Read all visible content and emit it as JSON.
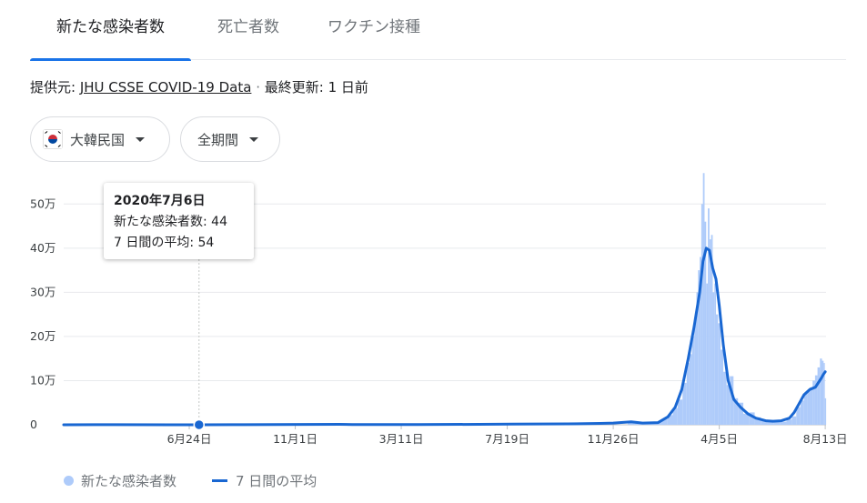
{
  "tabs": [
    {
      "label": "新たな感染者数",
      "active": true
    },
    {
      "label": "死亡者数",
      "active": false
    },
    {
      "label": "ワクチン接種",
      "active": false
    }
  ],
  "source": {
    "prefix": "提供元:",
    "link": "JHU CSSE COVID-19 Data",
    "separator": "·",
    "updated": "最終更新: 1 日前"
  },
  "filters": {
    "country": "大韓民国",
    "period": "全期間",
    "country_flag_icon": "korea-flag-icon"
  },
  "tooltip": {
    "date": "2020年7月6日",
    "new_cases": "新たな感染者数: 44",
    "average": "7 日間の平均: 54"
  },
  "legend": {
    "daily": "新たな感染者数",
    "average": "7 日間の平均"
  },
  "colors": {
    "bars": "#aecbfa",
    "line": "#1967d2",
    "accent": "#1a73e8",
    "grid": "#e8eaed"
  },
  "chart_data": {
    "type": "bar",
    "y_unit": "万",
    "ylim": [
      0,
      550000
    ],
    "yticks": [
      0,
      100000,
      200000,
      300000,
      400000,
      500000
    ],
    "ytick_labels": [
      "0",
      "10万",
      "20万",
      "30万",
      "40万",
      "50万"
    ],
    "xlim": [
      "2020-01-22",
      "2022-08-14"
    ],
    "xticks": [
      "2020-06-24",
      "2020-11-01",
      "2021-03-11",
      "2021-07-19",
      "2021-11-26",
      "2022-04-05",
      "2022-08-13"
    ],
    "xtick_labels": [
      "6月24日",
      "11月1日",
      "3月11日",
      "7月19日",
      "11月26日",
      "4月5日",
      "8月13日"
    ],
    "highlight": {
      "date": "2020-07-06",
      "value": 44,
      "average": 54
    },
    "series": [
      {
        "name": "新たな感染者数",
        "kind": "bar",
        "x": [
          "2021-12-15",
          "2021-12-30",
          "2022-01-10",
          "2022-01-20",
          "2022-01-28",
          "2022-02-04",
          "2022-02-10",
          "2022-02-16",
          "2022-02-22",
          "2022-02-26",
          "2022-03-01",
          "2022-03-04",
          "2022-03-07",
          "2022-03-09",
          "2022-03-11",
          "2022-03-13",
          "2022-03-15",
          "2022-03-17",
          "2022-03-19",
          "2022-03-21",
          "2022-03-23",
          "2022-03-25",
          "2022-03-27",
          "2022-03-29",
          "2022-03-31",
          "2022-04-02",
          "2022-04-05",
          "2022-04-08",
          "2022-04-12",
          "2022-04-16",
          "2022-04-20",
          "2022-04-25",
          "2022-05-01",
          "2022-05-08",
          "2022-05-15",
          "2022-05-22",
          "2022-05-30",
          "2022-06-07",
          "2022-06-15",
          "2022-06-23",
          "2022-06-30",
          "2022-07-06",
          "2022-07-11",
          "2022-07-16",
          "2022-07-20",
          "2022-07-24",
          "2022-07-27",
          "2022-07-30",
          "2022-08-02",
          "2022-08-05",
          "2022-08-08",
          "2022-08-10",
          "2022-08-12",
          "2022-08-13"
        ],
        "values": [
          7000,
          5500,
          3500,
          6000,
          13000,
          22000,
          38000,
          57000,
          95000,
          140000,
          160000,
          200000,
          240000,
          300000,
          350000,
          380000,
          500000,
          570000,
          460000,
          320000,
          490000,
          420000,
          430000,
          300000,
          320000,
          250000,
          230000,
          170000,
          120000,
          90000,
          110000,
          60000,
          50000,
          25000,
          28000,
          17000,
          12000,
          8000,
          7000,
          7000,
          12000,
          19000,
          40000,
          55000,
          70000,
          76000,
          85000,
          100000,
          112000,
          130000,
          150000,
          145000,
          140000,
          60000
        ]
      },
      {
        "name": "7 日間の平均",
        "kind": "line",
        "x": [
          "2020-01-22",
          "2020-03-01",
          "2020-03-15",
          "2020-06-01",
          "2020-07-06",
          "2020-08-30",
          "2020-12-25",
          "2021-01-10",
          "2021-04-01",
          "2021-07-25",
          "2021-10-01",
          "2021-11-10",
          "2021-11-26",
          "2021-12-18",
          "2022-01-01",
          "2022-01-20",
          "2022-02-01",
          "2022-02-10",
          "2022-02-18",
          "2022-02-26",
          "2022-03-05",
          "2022-03-12",
          "2022-03-16",
          "2022-03-20",
          "2022-03-24",
          "2022-03-28",
          "2022-04-01",
          "2022-04-05",
          "2022-04-10",
          "2022-04-16",
          "2022-04-23",
          "2022-05-01",
          "2022-05-10",
          "2022-05-20",
          "2022-06-01",
          "2022-06-10",
          "2022-06-20",
          "2022-06-30",
          "2022-07-06",
          "2022-07-12",
          "2022-07-18",
          "2022-07-25",
          "2022-08-01",
          "2022-08-08",
          "2022-08-11",
          "2022-08-13"
        ],
        "values": [
          0,
          300,
          200,
          50,
          54,
          300,
          1000,
          600,
          500,
          1500,
          2000,
          3000,
          4000,
          6500,
          4000,
          5000,
          18000,
          40000,
          80000,
          150000,
          220000,
          300000,
          370000,
          400000,
          395000,
          355000,
          330000,
          270000,
          180000,
          100000,
          57000,
          40000,
          25000,
          15000,
          9000,
          8000,
          9000,
          15000,
          28000,
          48000,
          68000,
          80000,
          85000,
          105000,
          115000,
          120000
        ]
      }
    ]
  }
}
